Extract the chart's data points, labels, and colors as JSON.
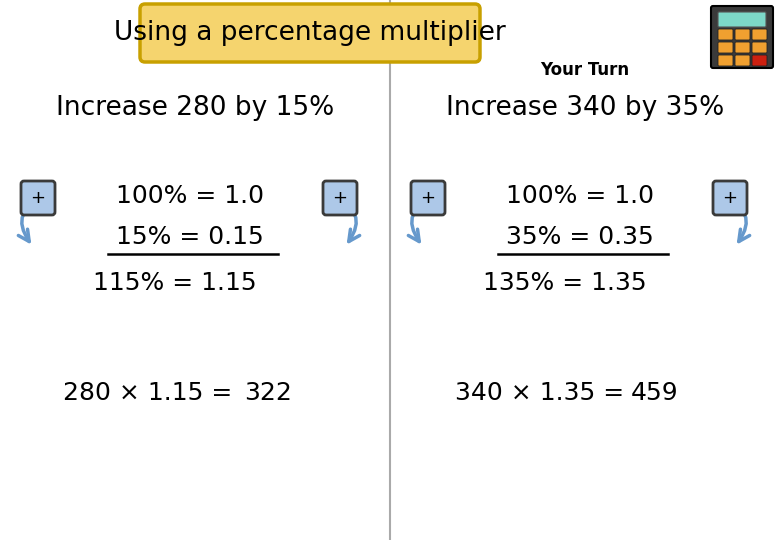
{
  "title": "Using a percentage multiplier",
  "title_bg": "#f5d46e",
  "title_border": "#c8a000",
  "your_turn_text": "Your Turn",
  "bg_color": "#ffffff",
  "left": {
    "heading": "Increase 280 by 15%",
    "line1": "100% = 1.0",
    "line2": "15% = 0.15",
    "total": "115% = 1.15",
    "calc": "280 × 1.15 =",
    "answer": "322"
  },
  "right": {
    "heading": "Increase 340 by 35%",
    "line1": "100% = 1.0",
    "line2": "35% = 0.35",
    "total": "135% = 1.35",
    "calc": "340 × 1.35 =",
    "answer": "459"
  },
  "plus_box_color": "#adc8e8",
  "plus_box_border": "#3a3a3a",
  "arrow_color": "#6699cc",
  "arrow_fill": "#7aaadd",
  "font_size_heading": 19,
  "font_size_body": 18,
  "font_size_title": 19,
  "font_size_your_turn": 12,
  "divider_color": "#aaaaaa",
  "calc_body": "#3a3a3a",
  "calc_screen": "#7dd8c8",
  "calc_btn_orange": "#f0a030",
  "calc_btn_red": "#cc2010"
}
